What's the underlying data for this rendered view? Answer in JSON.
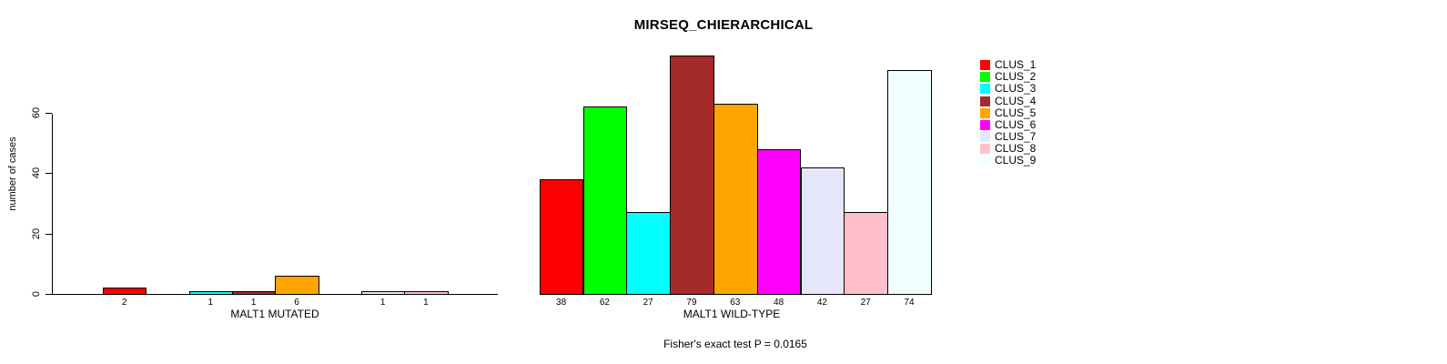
{
  "title": "MIRSEQ_CHIERARCHICAL",
  "y_axis": {
    "label": "number of cases",
    "ticks": [
      "0",
      "20",
      "40",
      "60"
    ]
  },
  "legend": {
    "items": [
      {
        "label": "CLUS_1",
        "color": "#FF0000"
      },
      {
        "label": "CLUS_2",
        "color": "#00FF00"
      },
      {
        "label": "CLUS_3",
        "color": "#00FFFF"
      },
      {
        "label": "CLUS_4",
        "color": "#A52A2A"
      },
      {
        "label": "CLUS_5",
        "color": "#FFA500"
      },
      {
        "label": "CLUS_6",
        "color": "#FF00FF"
      },
      {
        "label": "CLUS_7",
        "color": "#E6E6FA"
      },
      {
        "label": "CLUS_8",
        "color": "#FFC0CB"
      },
      {
        "label": "CLUS_9",
        "color": "#F0FFFF"
      }
    ]
  },
  "chart_data": {
    "type": "bar",
    "title": "MIRSEQ_CHIERARCHICAL",
    "ylabel": "number of cases",
    "ylim": [
      0,
      79
    ],
    "yticks": [
      0,
      20,
      40,
      60
    ],
    "grid": false,
    "legend_position": "right",
    "categories": [
      "CLUS_1",
      "CLUS_2",
      "CLUS_3",
      "CLUS_4",
      "CLUS_5",
      "CLUS_6",
      "CLUS_7",
      "CLUS_8",
      "CLUS_9"
    ],
    "colors": [
      "#FF0000",
      "#00FF00",
      "#00FFFF",
      "#A52A2A",
      "#FFA500",
      "#FF00FF",
      "#E6E6FA",
      "#FFC0CB",
      "#F0FFFF"
    ],
    "groups": [
      {
        "label": "MALT1 MUTATED",
        "values": [
          2,
          0,
          1,
          1,
          6,
          0,
          1,
          1,
          0
        ]
      },
      {
        "label": "MALT1 WILD-TYPE",
        "values": [
          38,
          62,
          27,
          79,
          63,
          48,
          42,
          27,
          74
        ]
      }
    ],
    "annotation": "Fisher's exact test P = 0.0165"
  }
}
